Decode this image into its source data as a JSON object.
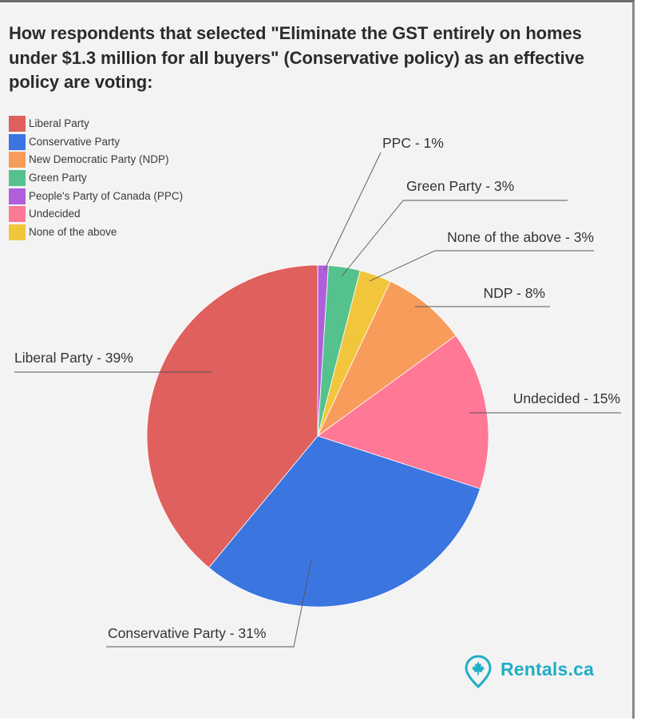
{
  "chart_data": {
    "type": "pie",
    "title": "How respondents that selected \"Eliminate the GST entirely on homes under $1.3 million for all buyers\" (Conservative policy) as an effective policy are voting:",
    "legend_position": "top-left",
    "slices": [
      {
        "name": "PPC",
        "legend": "People's Party of Canada (PPC)",
        "value": 1,
        "label": "PPC - 1%",
        "color": "#b05fdb"
      },
      {
        "name": "Green Party",
        "legend": "Green Party",
        "value": 3,
        "label": "Green Party - 3%",
        "color": "#55c28e"
      },
      {
        "name": "None of the above",
        "legend": "None of the above",
        "value": 3,
        "label": "None of the above - 3%",
        "color": "#f2c63c"
      },
      {
        "name": "NDP",
        "legend": "New Democratic Party (NDP)",
        "value": 8,
        "label": "NDP - 8%",
        "color": "#f79c5b"
      },
      {
        "name": "Undecided",
        "legend": "Undecided",
        "value": 15,
        "label": "Undecided - 15%",
        "color": "#ff7896"
      },
      {
        "name": "Conservative Party",
        "legend": "Conservative Party",
        "value": 31,
        "label": "Conservative Party  - 31%",
        "color": "#3a75e0"
      },
      {
        "name": "Liberal Party",
        "legend": "Liberal Party",
        "value": 39,
        "label": "Liberal Party  - 39%",
        "color": "#e0605d"
      }
    ]
  },
  "legend": {
    "items": [
      {
        "label": "Liberal Party",
        "color": "#e0605d"
      },
      {
        "label": "Conservative Party",
        "color": "#3a75e0"
      },
      {
        "label": "New Democratic Party (NDP)",
        "color": "#f79c5b"
      },
      {
        "label": "Green Party",
        "color": "#55c28e"
      },
      {
        "label": "People's Party of Canada (PPC)",
        "color": "#b05fdb"
      },
      {
        "label": "Undecided",
        "color": "#ff7896"
      },
      {
        "label": "None of the above",
        "color": "#f2c63c"
      }
    ]
  },
  "brand": {
    "name": "Rentals.ca",
    "icon": "maple-leaf-pin-icon",
    "color": "#1faec5"
  }
}
